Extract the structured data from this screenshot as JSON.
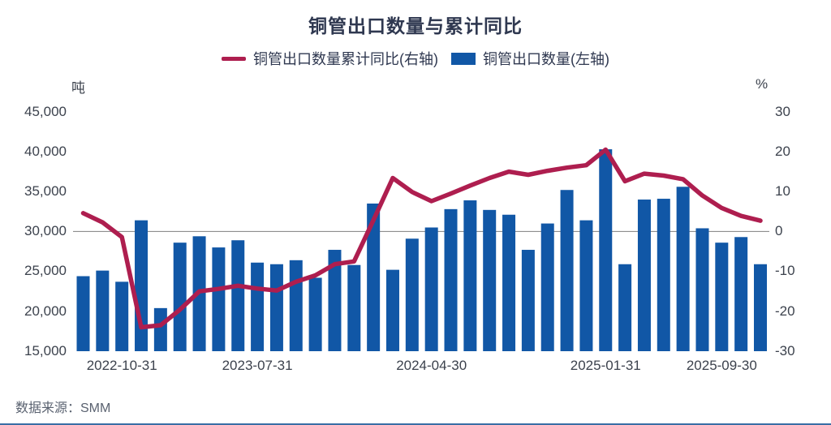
{
  "title": "铜管出口数量与累计同比",
  "legend": {
    "items": [
      {
        "label": "铜管出口数量累计同比(右轴)",
        "swatch": "line",
        "color": "#ae1e4f"
      },
      {
        "label": "铜管出口数量(左轴)",
        "swatch": "rect",
        "color": "#1157a6"
      }
    ]
  },
  "source": "数据来源：SMM",
  "chart_data": {
    "type": "combo-bar-line",
    "n_points": 36,
    "left_axis": {
      "unit": "吨",
      "min": 15000,
      "max": 45000,
      "step": 5000,
      "ticks": [
        "45,000",
        "40,000",
        "35,000",
        "30,000",
        "25,000",
        "20,000",
        "15,000"
      ]
    },
    "right_axis": {
      "unit": "%",
      "min": -30,
      "max": 30,
      "step": 10,
      "ticks": [
        "30",
        "20",
        "10",
        "0",
        "-10",
        "-20",
        "-30"
      ]
    },
    "x_tick_labels": [
      {
        "index": 2,
        "label": "2022-10-31"
      },
      {
        "index": 9,
        "label": "2023-07-31"
      },
      {
        "index": 18,
        "label": "2024-04-30"
      },
      {
        "index": 27,
        "label": "2025-01-31"
      },
      {
        "index": 33,
        "label": "2025-09-30"
      }
    ],
    "series": [
      {
        "name": "铜管出口数量(左轴)",
        "type": "bar",
        "axis": "left",
        "color": "#1157a6",
        "values": [
          24400,
          25100,
          23700,
          31400,
          20400,
          28600,
          29400,
          28000,
          28900,
          26100,
          25900,
          26400,
          24200,
          27700,
          25800,
          33500,
          25200,
          29100,
          30500,
          32800,
          33900,
          32700,
          32100,
          27700,
          31000,
          35200,
          31400,
          40300,
          25900,
          34000,
          34100,
          35600,
          30400,
          28600,
          29300,
          25900
        ]
      },
      {
        "name": "铜管出口数量累计同比(右轴)",
        "type": "line",
        "axis": "right",
        "color": "#ae1e4f",
        "values": [
          4.6,
          2.3,
          -1.4,
          -24.0,
          -23.5,
          -19.6,
          -15.0,
          -14.4,
          -13.6,
          -14.3,
          -14.8,
          -12.6,
          -11.0,
          -8.2,
          -7.5,
          2.8,
          13.4,
          9.9,
          7.6,
          9.5,
          11.5,
          13.4,
          15.0,
          14.2,
          15.2,
          16.0,
          16.6,
          20.5,
          12.6,
          14.5,
          14.0,
          13.1,
          9.0,
          5.9,
          3.9,
          2.7
        ]
      }
    ],
    "gridlines": {
      "zero_line_color": "#7f7f7f",
      "only_zero_line": true
    },
    "legend_position": "top"
  }
}
